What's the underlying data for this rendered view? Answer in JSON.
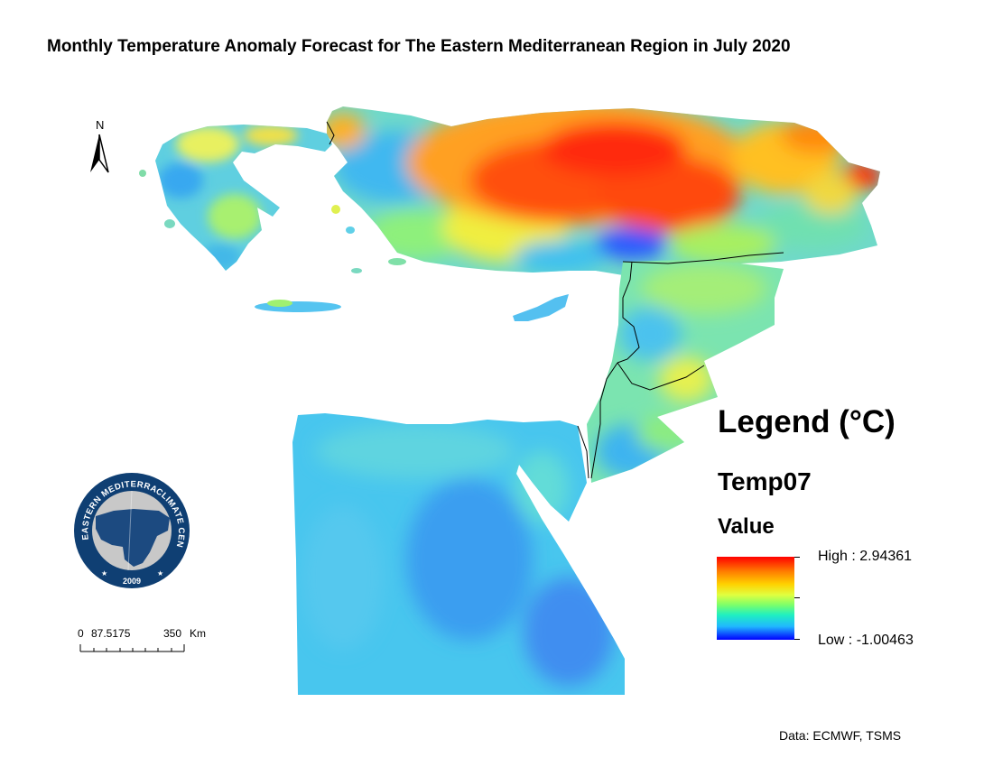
{
  "title": "Monthly Temperature Anomaly Forecast for The Eastern Mediterranean Region in July 2020",
  "north_arrow": {
    "label": "N",
    "icon": "north-arrow-icon"
  },
  "logo": {
    "text_top": "EASTERN MEDITERRANEAN",
    "text_right": "CLIMATE CENTRE",
    "year": "2009",
    "colors": {
      "ring": "#0f3f73",
      "land": "#c8c8c8",
      "map": "#1c4a80"
    }
  },
  "scale_bar": {
    "labels": [
      "0",
      "87.5175",
      "350",
      "Km"
    ]
  },
  "legend": {
    "title": "Legend (°C)",
    "layer": "Temp07",
    "field": "Value",
    "high": "High : 2.94361",
    "low": "Low : -1.00463",
    "high_value": 2.94361,
    "low_value": -1.00463,
    "colors": [
      "#ff0000",
      "#ff7f00",
      "#ffd100",
      "#e0ff40",
      "#7dff6a",
      "#20f0c0",
      "#20b8ff",
      "#0000ff"
    ]
  },
  "credit": "Data: ECMWF, TSMS"
}
